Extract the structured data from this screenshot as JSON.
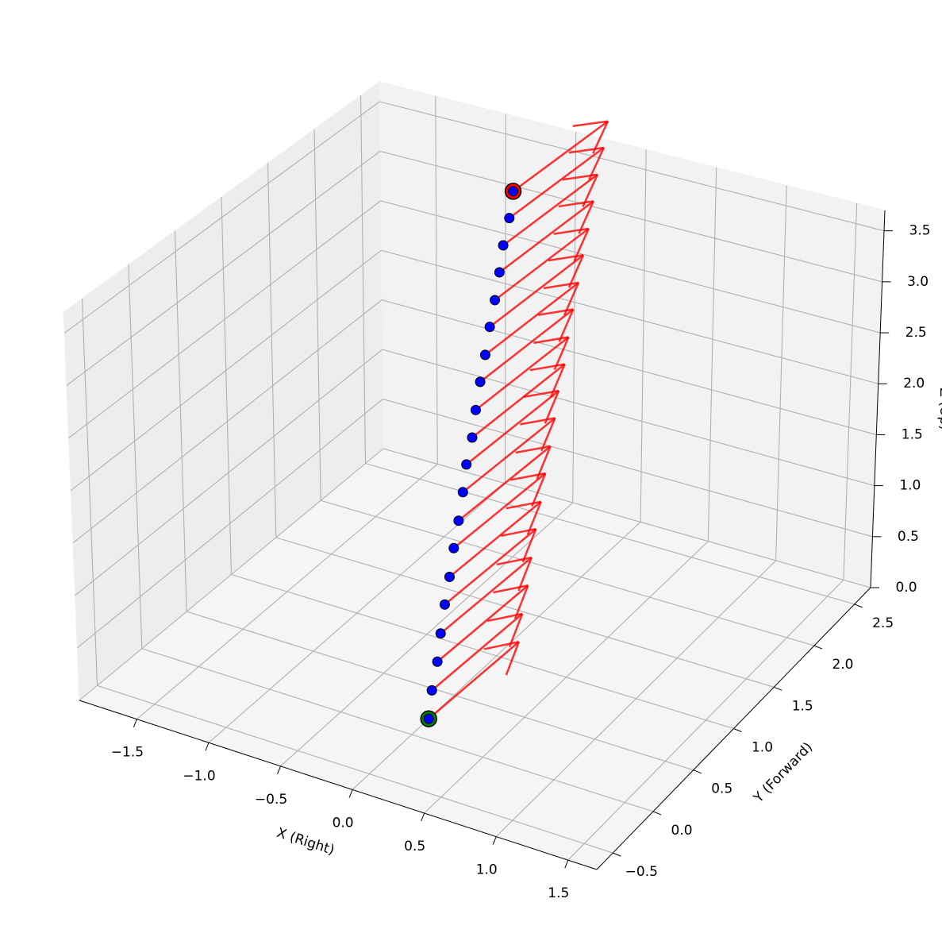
{
  "chart_data": {
    "type": "scatter3d",
    "xlabel": "X (Right)",
    "ylabel": "Y (Forward)",
    "zlabel": "Z (Up)",
    "x": [
      0,
      -0.03,
      -0.05,
      -0.08,
      -0.11,
      -0.13,
      -0.16,
      -0.18,
      -0.21,
      -0.24,
      -0.26,
      -0.29,
      -0.32,
      -0.34,
      -0.37,
      -0.39,
      -0.42,
      -0.45,
      -0.47,
      -0.5
    ],
    "y": [
      0.2,
      0.29,
      0.39,
      0.48,
      0.58,
      0.67,
      0.77,
      0.86,
      0.96,
      1.05,
      1.15,
      1.24,
      1.34,
      1.43,
      1.53,
      1.62,
      1.72,
      1.81,
      1.91,
      2.0
    ],
    "z": [
      0,
      0.19,
      0.38,
      0.57,
      0.76,
      0.95,
      1.14,
      1.33,
      1.52,
      1.71,
      1.89,
      2.08,
      2.27,
      2.46,
      2.65,
      2.84,
      3.03,
      3.22,
      3.41,
      3.6
    ],
    "color": "#0000ff",
    "start_color": "#008000",
    "end_color": "#ff0000",
    "arrows": {
      "u": 0.1,
      "v": 0.9,
      "w": 0.1,
      "color": "#ff0000"
    },
    "xlim": [
      -1.9,
      1.7
    ],
    "ylim": [
      -0.7,
      2.7
    ],
    "zlim": [
      0,
      3.7
    ],
    "xticks": [
      {
        "value": -1.5,
        "label": "−1.5"
      },
      {
        "value": -1,
        "label": "−1.0"
      },
      {
        "value": -0.5,
        "label": "−0.5"
      },
      {
        "value": 0,
        "label": "0.0"
      },
      {
        "value": 0.5,
        "label": "0.5"
      },
      {
        "value": 1,
        "label": "1.0"
      },
      {
        "value": 1.5,
        "label": "1.5"
      }
    ],
    "yticks": [
      {
        "value": -0.5,
        "label": "−0.5"
      },
      {
        "value": 0,
        "label": "0.0"
      },
      {
        "value": 0.5,
        "label": "0.5"
      },
      {
        "value": 1,
        "label": "1.0"
      },
      {
        "value": 1.5,
        "label": "1.5"
      },
      {
        "value": 2,
        "label": "2.0"
      },
      {
        "value": 2.5,
        "label": "2.5"
      }
    ],
    "zticks": [
      {
        "value": 0,
        "label": "0.0"
      },
      {
        "value": 0.5,
        "label": "0.5"
      },
      {
        "value": 1,
        "label": "1.0"
      },
      {
        "value": 1.5,
        "label": "1.5"
      },
      {
        "value": 2,
        "label": "2.0"
      },
      {
        "value": 2.5,
        "label": "2.5"
      },
      {
        "value": 3,
        "label": "3.0"
      },
      {
        "value": 3.5,
        "label": "3.5"
      }
    ],
    "grid": true
  }
}
